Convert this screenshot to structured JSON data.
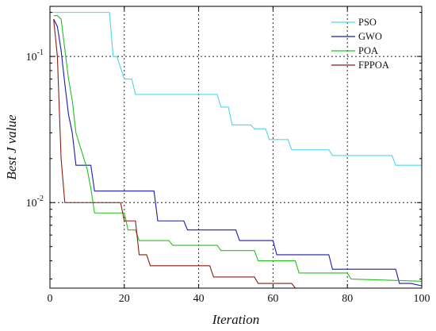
{
  "chart_data": {
    "type": "line",
    "title": "",
    "xlabel": "Iteration",
    "ylabel": "Best  J  value",
    "xlim": [
      0,
      100
    ],
    "ylim": [
      0.0026,
      0.22
    ],
    "yscale": "log",
    "grid": true,
    "legend_position": "top-right",
    "x_ticks": [
      0,
      20,
      40,
      60,
      80,
      100
    ],
    "y_ticks": [
      {
        "value": 0.1,
        "base": "10",
        "exp": "-1"
      },
      {
        "value": 0.01,
        "base": "10",
        "exp": "-2"
      }
    ],
    "series": [
      {
        "name": "PSO",
        "color": "#4dd6ee",
        "x": [
          0,
          14,
          16,
          17,
          18,
          20,
          22,
          23,
          45,
          46,
          48,
          49,
          54,
          55,
          58,
          59,
          64,
          65,
          75,
          76,
          92,
          93,
          100
        ],
        "y": [
          0.2,
          0.2,
          0.2,
          0.1,
          0.1,
          0.07,
          0.07,
          0.055,
          0.055,
          0.045,
          0.045,
          0.034,
          0.034,
          0.032,
          0.032,
          0.027,
          0.027,
          0.023,
          0.023,
          0.021,
          0.021,
          0.018,
          0.018
        ]
      },
      {
        "name": "GWO",
        "color": "#1a1ab0",
        "x": [
          1,
          2,
          3,
          4,
          5,
          6,
          7,
          8,
          9,
          11,
          12,
          28,
          29,
          36,
          37,
          50,
          51,
          60,
          61,
          75,
          76,
          93,
          94,
          97,
          100
        ],
        "y": [
          0.18,
          0.16,
          0.11,
          0.065,
          0.04,
          0.03,
          0.018,
          0.018,
          0.018,
          0.018,
          0.012,
          0.012,
          0.0075,
          0.0075,
          0.0065,
          0.0065,
          0.0055,
          0.0055,
          0.0044,
          0.0044,
          0.0035,
          0.0035,
          0.0028,
          0.0028,
          0.0027
        ]
      },
      {
        "name": "POA",
        "color": "#22c31e",
        "x": [
          1,
          2,
          3,
          5,
          6,
          7,
          10,
          11,
          12,
          20,
          21,
          23,
          24,
          32,
          33,
          45,
          46,
          55,
          56,
          66,
          67,
          80,
          81,
          100
        ],
        "y": [
          0.19,
          0.19,
          0.18,
          0.07,
          0.05,
          0.03,
          0.017,
          0.0125,
          0.0085,
          0.0085,
          0.0065,
          0.0065,
          0.0055,
          0.0055,
          0.0051,
          0.0051,
          0.0047,
          0.0047,
          0.004,
          0.004,
          0.0033,
          0.0033,
          0.003,
          0.0029
        ]
      },
      {
        "name": "FPPOA",
        "color": "#8b1d10",
        "x": [
          1,
          2,
          3,
          4,
          19,
          20,
          23,
          24,
          26,
          27,
          43,
          44,
          55,
          56,
          65,
          66,
          100
        ],
        "y": [
          0.18,
          0.1,
          0.02,
          0.01,
          0.01,
          0.0075,
          0.0075,
          0.0044,
          0.0044,
          0.0037,
          0.0037,
          0.0031,
          0.0031,
          0.0028,
          0.0028,
          0.0026,
          0.0026
        ]
      }
    ]
  }
}
